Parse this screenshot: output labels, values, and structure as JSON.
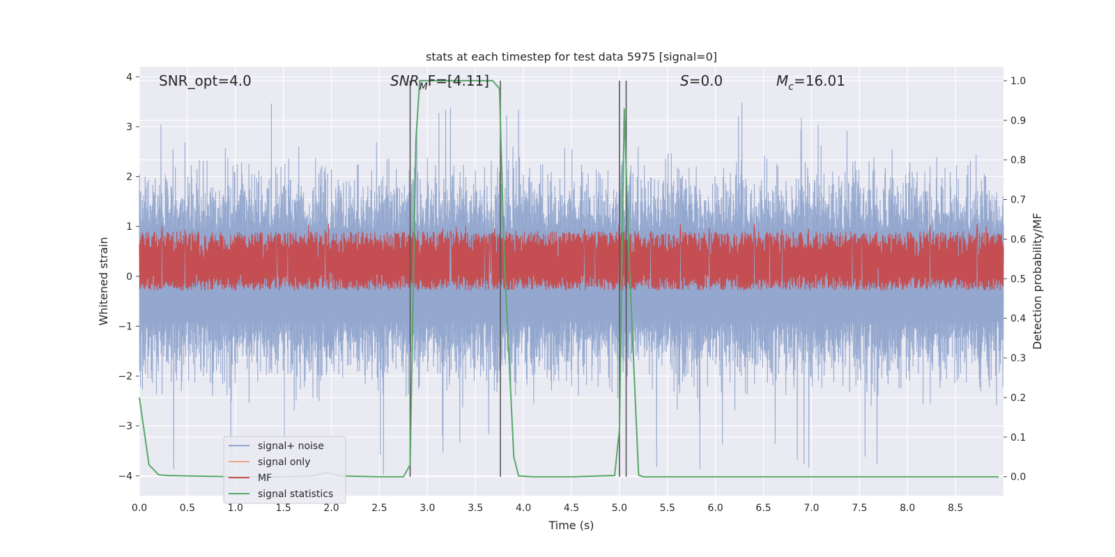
{
  "chart_data": {
    "type": "line",
    "title": "stats at each timestep for test data 5975 [signal=0]",
    "xlabel": "Time (s)",
    "ylabel_left": "Whitened strain",
    "ylabel_right": "Detection probability/MF",
    "xlim": [
      0.0,
      9.0
    ],
    "ylim_left": [
      -4.4,
      4.2
    ],
    "ylim_right": [
      -0.048,
      1.035
    ],
    "x_ticks": [
      "0.0",
      "0.5",
      "1.0",
      "1.5",
      "2.0",
      "2.5",
      "3.0",
      "3.5",
      "4.0",
      "4.5",
      "5.0",
      "5.5",
      "6.0",
      "6.5",
      "7.0",
      "7.5",
      "8.0",
      "8.5"
    ],
    "y_left_ticks": [
      "4",
      "3",
      "2",
      "1",
      "0",
      "−1",
      "−2",
      "−3",
      "−4"
    ],
    "y_right_ticks": [
      "1.0",
      "0.9",
      "0.8",
      "0.7",
      "0.6",
      "0.5",
      "0.4",
      "0.3",
      "0.2",
      "0.1",
      "0.0"
    ],
    "annotations": {
      "snr_opt": "SNR_opt=4.0",
      "snr_mf_sym": "SNR",
      "snr_mf_sub": "M",
      "snr_mf_rest": "F=[4.11]",
      "s_sym": "S",
      "s_rest": "=0.0",
      "mc_sym": "M",
      "mc_sub": "c",
      "mc_rest": "=16.01"
    },
    "legend": {
      "placement": "lower-left",
      "entries": [
        "signal+ noise",
        "signal only",
        "MF",
        "signal statistics"
      ]
    },
    "colors": {
      "signal_noise": "#8fa4cc",
      "signal_only": "#eaa48a",
      "mf": "#c44e52",
      "signal_statistics": "#55a868",
      "vlines": "#555555",
      "background": "#eaeaf2",
      "grid": "#ffffff"
    },
    "series": [
      {
        "name": "signal+ noise",
        "axis": "left",
        "noise_envelope_upper": 2.0,
        "noise_envelope_lower": -2.0,
        "spike_max": 3.5,
        "spike_min": -4.0
      },
      {
        "name": "signal only",
        "axis": "left",
        "x": [
          0.0,
          9.0
        ],
        "y": [
          0.0,
          0.0
        ]
      },
      {
        "name": "MF",
        "axis": "right",
        "center": 0.54,
        "band_upper": 0.62,
        "band_lower": 0.47
      },
      {
        "name": "signal statistics",
        "axis": "right",
        "x": [
          0.0,
          0.1,
          0.2,
          0.3,
          0.5,
          1.0,
          1.5,
          1.8,
          1.95,
          2.1,
          2.5,
          2.75,
          2.82,
          2.88,
          2.92,
          3.0,
          3.5,
          3.68,
          3.75,
          3.8,
          3.9,
          3.95,
          4.1,
          4.5,
          4.95,
          5.0,
          5.05,
          5.1,
          5.2,
          5.25,
          5.5,
          6.0,
          7.0,
          8.0,
          8.95
        ],
        "y": [
          0.2,
          0.03,
          0.005,
          0.003,
          0.002,
          0.0,
          0.0,
          0.002,
          0.01,
          0.002,
          0.0,
          0.0,
          0.03,
          0.85,
          1.0,
          1.0,
          1.0,
          1.0,
          0.98,
          0.55,
          0.05,
          0.002,
          0.0,
          0.0,
          0.003,
          0.12,
          0.93,
          0.55,
          0.004,
          0.0,
          0.0,
          0.0,
          0.0,
          0.0,
          0.0
        ]
      }
    ],
    "vertical_lines_x": [
      2.82,
      3.76,
      5.0,
      5.07
    ]
  }
}
